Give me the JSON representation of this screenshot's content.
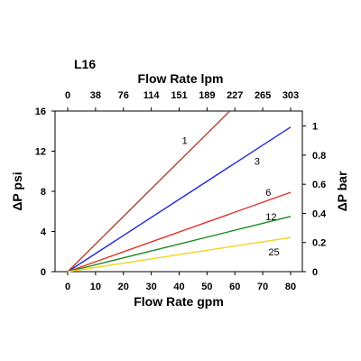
{
  "chart_data": {
    "type": "line",
    "title": "L16",
    "xlabel": "Flow Rate gpm",
    "ylabel": "ΔP psi",
    "x2label": "Flow Rate lpm",
    "y2label": "ΔP bar",
    "xlim": [
      0,
      80
    ],
    "ylim": [
      0,
      16
    ],
    "x_ticks": [
      0,
      10,
      20,
      30,
      40,
      50,
      60,
      70,
      80
    ],
    "y_ticks": [
      0,
      4,
      8,
      12,
      16
    ],
    "x2_ticks": [
      "0",
      "38",
      "76",
      "114",
      "151",
      "189",
      "227",
      "265",
      "303"
    ],
    "y2_ticks": [
      {
        "label": "0",
        "value": 0
      },
      {
        "label": "0.2",
        "value": 0.2
      },
      {
        "label": "0.4",
        "value": 0.4
      },
      {
        "label": "0.6",
        "value": 0.6
      },
      {
        "label": "0.8",
        "value": 0.8
      },
      {
        "label": "1",
        "value": 1.0
      }
    ],
    "y2_scale": 0.0689476,
    "grid": false,
    "series": [
      {
        "name": "1",
        "color": "#b5432a",
        "x": [
          0,
          58.2
        ],
        "y": [
          0,
          16
        ]
      },
      {
        "name": "3",
        "color": "#1f2ad6",
        "x": [
          0,
          80
        ],
        "y": [
          0,
          14.4
        ]
      },
      {
        "name": "6",
        "color": "#e0302a",
        "x": [
          0,
          80
        ],
        "y": [
          0,
          7.9
        ]
      },
      {
        "name": "12",
        "color": "#1d8a22",
        "x": [
          0,
          80
        ],
        "y": [
          0,
          5.5
        ]
      },
      {
        "name": "25",
        "color": "#f2d21c",
        "x": [
          0,
          80
        ],
        "y": [
          0,
          3.4
        ]
      }
    ],
    "series_label_positions": [
      {
        "name": "1",
        "x": 42,
        "y": 13.1
      },
      {
        "name": "3",
        "x": 68,
        "y": 11.0
      },
      {
        "name": "6",
        "x": 72,
        "y": 7.9
      },
      {
        "name": "12",
        "x": 73,
        "y": 5.5
      },
      {
        "name": "25",
        "x": 74,
        "y": 2.0
      }
    ]
  }
}
